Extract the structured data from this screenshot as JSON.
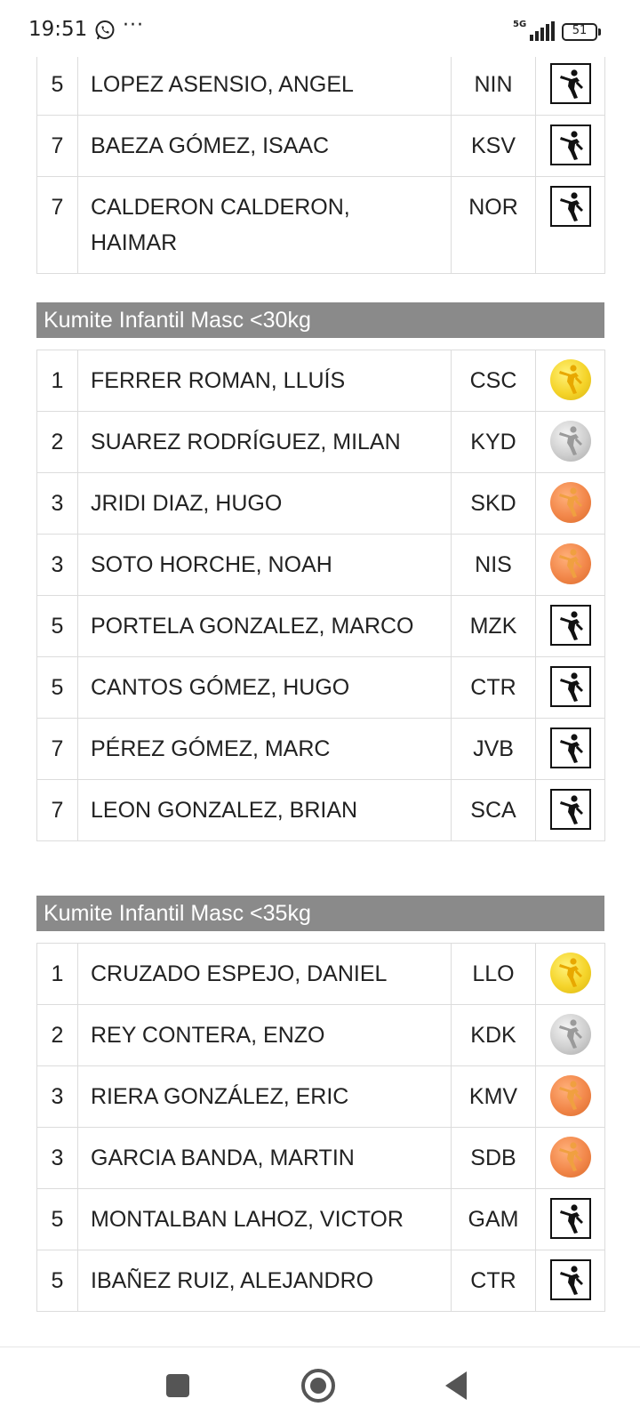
{
  "status_bar": {
    "time": "19:51",
    "more": "···",
    "network": "5G",
    "battery": "51"
  },
  "tables": [
    {
      "rows": [
        {
          "pos": "5",
          "name": "LOPEZ ASENSIO, ANGEL",
          "club": "NIN",
          "icon": "participant"
        },
        {
          "pos": "7",
          "name": "BAEZA GÓMEZ, ISAAC",
          "club": "KSV",
          "icon": "participant"
        },
        {
          "pos": "7",
          "name": "CALDERON CALDERON, HAIMAR",
          "club": "NOR",
          "icon": "participant"
        }
      ]
    },
    {
      "title": "Kumite Infantil Masc <30kg",
      "rows": [
        {
          "pos": "1",
          "name": "FERRER ROMAN, LLUÍS",
          "club": "CSC",
          "icon": "gold"
        },
        {
          "pos": "2",
          "name": "SUAREZ RODRÍGUEZ, MILAN",
          "club": "KYD",
          "icon": "silver"
        },
        {
          "pos": "3",
          "name": "JRIDI DIAZ, HUGO",
          "club": "SKD",
          "icon": "bronze"
        },
        {
          "pos": "3",
          "name": "SOTO HORCHE, NOAH",
          "club": "NIS",
          "icon": "bronze"
        },
        {
          "pos": "5",
          "name": "PORTELA GONZALEZ, MARCO",
          "club": "MZK",
          "icon": "participant"
        },
        {
          "pos": "5",
          "name": "CANTOS GÓMEZ, HUGO",
          "club": "CTR",
          "icon": "participant"
        },
        {
          "pos": "7",
          "name": "PÉREZ GÓMEZ, MARC",
          "club": "JVB",
          "icon": "participant"
        },
        {
          "pos": "7",
          "name": "LEON GONZALEZ, BRIAN",
          "club": "SCA",
          "icon": "participant"
        }
      ]
    },
    {
      "title": "Kumite Infantil Masc <35kg",
      "rows": [
        {
          "pos": "1",
          "name": "CRUZADO ESPEJO, DANIEL",
          "club": "LLO",
          "icon": "gold"
        },
        {
          "pos": "2",
          "name": "REY CONTERA, ENZO",
          "club": "KDK",
          "icon": "silver"
        },
        {
          "pos": "3",
          "name": "RIERA GONZÁLEZ, ERIC",
          "club": "KMV",
          "icon": "bronze"
        },
        {
          "pos": "3",
          "name": "GARCIA BANDA, MARTIN",
          "club": "SDB",
          "icon": "bronze"
        },
        {
          "pos": "5",
          "name": "MONTALBAN LAHOZ, VICTOR",
          "club": "GAM",
          "icon": "participant"
        },
        {
          "pos": "5",
          "name": "IBAÑEZ RUIZ, ALEJANDRO",
          "club": "CTR",
          "icon": "participant"
        }
      ]
    }
  ],
  "colors": {
    "header_bg": "#8a8a8a",
    "gold": "#f5d42a",
    "silver": "#cfcfcf",
    "bronze": "#f2874a"
  },
  "nav_bar": {
    "recents": "square-icon",
    "home": "circle-icon",
    "back": "triangle-back-icon"
  }
}
